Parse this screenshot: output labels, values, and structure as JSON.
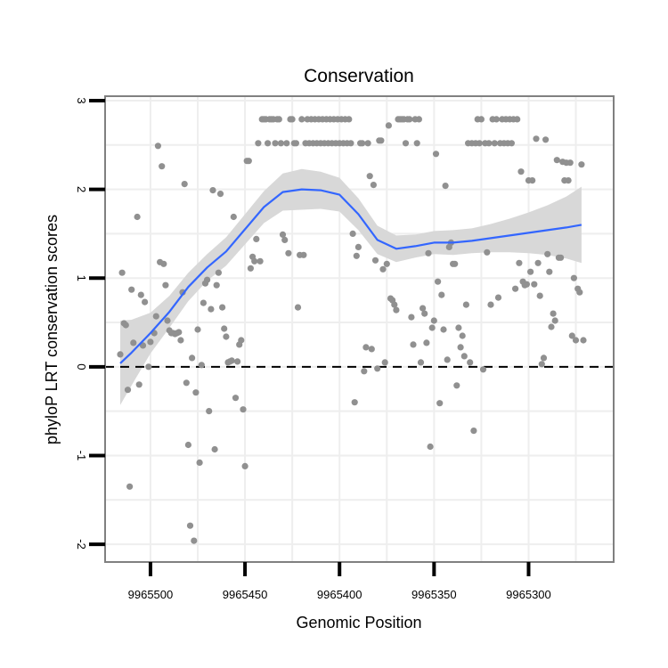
{
  "chart_data": {
    "type": "scatter",
    "title": "Conservation",
    "xlabel": "Genomic Position",
    "ylabel": "phyloP LRT conservation scores",
    "x_reversed": true,
    "xlim": [
      9965524,
      9965255
    ],
    "ylim": [
      -2.2,
      3.05
    ],
    "x_ticks": [
      9965500,
      9965450,
      9965400,
      9965350,
      9965300
    ],
    "x_tick_labels": [
      "9965500",
      "9965450",
      "9965400",
      "9965350",
      "9965300"
    ],
    "y_ticks": [
      -2,
      -1,
      0,
      1,
      2,
      3
    ],
    "y_tick_labels": [
      "-2",
      "-1",
      "0",
      "1",
      "2",
      "3"
    ],
    "grid": true,
    "reference_line": {
      "y": 0,
      "style": "dashed"
    },
    "colors": {
      "points": "#909090",
      "smooth_line": "#3366ff",
      "confidence_band": "#d6d6d6",
      "grid": "#eeeeee",
      "panel_border": "#808080"
    },
    "points": [
      [
        9965516,
        0.14
      ],
      [
        9965515,
        1.06
      ],
      [
        9965514,
        0.49
      ],
      [
        9965513,
        0.47
      ],
      [
        9965512,
        -0.26
      ],
      [
        9965511,
        -1.35
      ],
      [
        9965510,
        0.87
      ],
      [
        9965509,
        0.27
      ],
      [
        9965507,
        1.69
      ],
      [
        9965506,
        -0.2
      ],
      [
        9965505,
        0.81
      ],
      [
        9965504,
        0.24
      ],
      [
        9965503,
        0.73
      ],
      [
        9965501,
        0.0
      ],
      [
        9965500,
        0.28
      ],
      [
        9965498,
        0.38
      ],
      [
        9965497,
        0.57
      ],
      [
        9965496,
        2.49
      ],
      [
        9965495,
        1.18
      ],
      [
        9965494,
        2.26
      ],
      [
        9965493,
        1.16
      ],
      [
        9965492,
        0.92
      ],
      [
        9965491,
        0.52
      ],
      [
        9965490,
        0.41
      ],
      [
        9965489,
        0.38
      ],
      [
        9965488,
        0.38
      ],
      [
        9965487,
        0.37
      ],
      [
        9965486,
        0.38
      ],
      [
        9965485,
        0.39
      ],
      [
        9965484,
        0.3
      ],
      [
        9965483,
        0.84
      ],
      [
        9965482,
        2.06
      ],
      [
        9965481,
        -0.18
      ],
      [
        9965480,
        -0.88
      ],
      [
        9965479,
        -1.79
      ],
      [
        9965478,
        0.1
      ],
      [
        9965477,
        -1.96
      ],
      [
        9965476,
        -0.29
      ],
      [
        9965475,
        0.42
      ],
      [
        9965474,
        -1.08
      ],
      [
        9965473,
        0.02
      ],
      [
        9965472,
        0.72
      ],
      [
        9965471,
        0.94
      ],
      [
        9965470,
        0.98
      ],
      [
        9965469,
        -0.5
      ],
      [
        9965468,
        0.65
      ],
      [
        9965467,
        1.99
      ],
      [
        9965466,
        -0.93
      ],
      [
        9965465,
        0.92
      ],
      [
        9965464,
        1.06
      ],
      [
        9965463,
        1.95
      ],
      [
        9965462,
        0.67
      ],
      [
        9965461,
        0.43
      ],
      [
        9965460,
        0.34
      ],
      [
        9965459,
        0.05
      ],
      [
        9965458,
        0.06
      ],
      [
        9965457,
        0.07
      ],
      [
        9965456,
        1.69
      ],
      [
        9965455,
        -0.35
      ],
      [
        9965454,
        0.06
      ],
      [
        9965453,
        0.25
      ],
      [
        9965452,
        0.3
      ],
      [
        9965451,
        -0.48
      ],
      [
        9965450,
        -1.12
      ],
      [
        9965449,
        2.32
      ],
      [
        9965448,
        2.32
      ],
      [
        9965447,
        1.11
      ],
      [
        9965446,
        1.24
      ],
      [
        9965445,
        1.19
      ],
      [
        9965444,
        1.44
      ],
      [
        9965443,
        2.52
      ],
      [
        9965442,
        1.19
      ],
      [
        9965441,
        2.79
      ],
      [
        9965440,
        2.79
      ],
      [
        9965439,
        2.79
      ],
      [
        9965438,
        2.52
      ],
      [
        9965437,
        2.79
      ],
      [
        9965436,
        2.79
      ],
      [
        9965435,
        2.79
      ],
      [
        9965434,
        2.52
      ],
      [
        9965433,
        2.79
      ],
      [
        9965432,
        2.79
      ],
      [
        9965431,
        2.52
      ],
      [
        9965430,
        1.49
      ],
      [
        9965429,
        1.43
      ],
      [
        9965428,
        2.52
      ],
      [
        9965427,
        1.28
      ],
      [
        9965426,
        2.79
      ],
      [
        9965425,
        2.79
      ],
      [
        9965424,
        2.52
      ],
      [
        9965423,
        2.52
      ],
      [
        9965422,
        0.67
      ],
      [
        9965421,
        1.26
      ],
      [
        9965420,
        2.79
      ],
      [
        9965419,
        1.26
      ],
      [
        9965418,
        2.52
      ],
      [
        9965417,
        2.79
      ],
      [
        9965416,
        2.52
      ],
      [
        9965415,
        2.79
      ],
      [
        9965414,
        2.52
      ],
      [
        9965413,
        2.79
      ],
      [
        9965412,
        2.52
      ],
      [
        9965411,
        2.79
      ],
      [
        9965410,
        2.52
      ],
      [
        9965409,
        2.79
      ],
      [
        9965408,
        2.52
      ],
      [
        9965407,
        2.79
      ],
      [
        9965406,
        2.52
      ],
      [
        9965405,
        2.79
      ],
      [
        9965404,
        2.52
      ],
      [
        9965403,
        2.79
      ],
      [
        9965402,
        2.52
      ],
      [
        9965401,
        2.79
      ],
      [
        9965400,
        2.52
      ],
      [
        9965399,
        2.79
      ],
      [
        9965398,
        2.52
      ],
      [
        9965397,
        2.79
      ],
      [
        9965396,
        2.52
      ],
      [
        9965395,
        2.79
      ],
      [
        9965394,
        2.52
      ],
      [
        9965393,
        1.5
      ],
      [
        9965392,
        -0.4
      ],
      [
        9965391,
        1.25
      ],
      [
        9965390,
        1.35
      ],
      [
        9965389,
        2.52
      ],
      [
        9965388,
        2.52
      ],
      [
        9965387,
        -0.05
      ],
      [
        9965386,
        0.22
      ],
      [
        9965385,
        2.52
      ],
      [
        9965384,
        2.15
      ],
      [
        9965383,
        0.2
      ],
      [
        9965382,
        2.05
      ],
      [
        9965381,
        1.2
      ],
      [
        9965380,
        -0.02
      ],
      [
        9965379,
        2.55
      ],
      [
        9965378,
        2.55
      ],
      [
        9965377,
        1.1
      ],
      [
        9965376,
        0.05
      ],
      [
        9965375,
        1.16
      ],
      [
        9965374,
        2.72
      ],
      [
        9965373,
        0.77
      ],
      [
        9965372,
        0.75
      ],
      [
        9965371,
        0.7
      ],
      [
        9965370,
        0.64
      ],
      [
        9965369,
        2.79
      ],
      [
        9965368,
        2.79
      ],
      [
        9965367,
        2.79
      ],
      [
        9965366,
        2.79
      ],
      [
        9965365,
        2.52
      ],
      [
        9965364,
        2.79
      ],
      [
        9965363,
        2.79
      ],
      [
        9965362,
        0.56
      ],
      [
        9965361,
        0.25
      ],
      [
        9965360,
        2.79
      ],
      [
        9965359,
        2.52
      ],
      [
        9965358,
        2.79
      ],
      [
        9965357,
        0.05
      ],
      [
        9965356,
        0.66
      ],
      [
        9965355,
        0.6
      ],
      [
        9965354,
        0.27
      ],
      [
        9965353,
        1.28
      ],
      [
        9965352,
        -0.9
      ],
      [
        9965351,
        0.44
      ],
      [
        9965350,
        0.52
      ],
      [
        9965349,
        2.4
      ],
      [
        9965348,
        0.96
      ],
      [
        9965347,
        -0.41
      ],
      [
        9965346,
        0.81
      ],
      [
        9965345,
        0.42
      ],
      [
        9965344,
        2.04
      ],
      [
        9965343,
        0.08
      ],
      [
        9965342,
        1.35
      ],
      [
        9965341,
        1.4
      ],
      [
        9965340,
        1.16
      ],
      [
        9965339,
        1.16
      ],
      [
        9965338,
        -0.21
      ],
      [
        9965337,
        0.44
      ],
      [
        9965336,
        0.22
      ],
      [
        9965335,
        0.35
      ],
      [
        9965334,
        0.12
      ],
      [
        9965333,
        0.7
      ],
      [
        9965332,
        2.52
      ],
      [
        9965331,
        0.05
      ],
      [
        9965330,
        2.52
      ],
      [
        9965329,
        -0.72
      ],
      [
        9965328,
        2.52
      ],
      [
        9965327,
        2.79
      ],
      [
        9965326,
        2.52
      ],
      [
        9965325,
        2.79
      ],
      [
        9965324,
        -0.03
      ],
      [
        9965323,
        2.52
      ],
      [
        9965322,
        1.29
      ],
      [
        9965321,
        2.52
      ],
      [
        9965320,
        0.7
      ],
      [
        9965319,
        2.79
      ],
      [
        9965318,
        2.52
      ],
      [
        9965317,
        2.79
      ],
      [
        9965316,
        0.78
      ],
      [
        9965315,
        2.52
      ],
      [
        9965314,
        2.79
      ],
      [
        9965313,
        2.52
      ],
      [
        9965312,
        2.79
      ],
      [
        9965311,
        2.52
      ],
      [
        9965310,
        2.79
      ],
      [
        9965309,
        2.52
      ],
      [
        9965308,
        2.79
      ],
      [
        9965307,
        0.88
      ],
      [
        9965306,
        2.79
      ],
      [
        9965305,
        1.17
      ],
      [
        9965304,
        2.2
      ],
      [
        9965303,
        0.96
      ],
      [
        9965302,
        0.92
      ],
      [
        9965301,
        0.93
      ],
      [
        9965300,
        2.1
      ],
      [
        9965299,
        1.07
      ],
      [
        9965298,
        2.1
      ],
      [
        9965297,
        0.93
      ],
      [
        9965296,
        2.57
      ],
      [
        9965295,
        1.17
      ],
      [
        9965294,
        0.8
      ],
      [
        9965293,
        0.03
      ],
      [
        9965292,
        0.1
      ],
      [
        9965291,
        2.56
      ],
      [
        9965290,
        1.27
      ],
      [
        9965289,
        1.07
      ],
      [
        9965288,
        0.45
      ],
      [
        9965287,
        0.6
      ],
      [
        9965286,
        0.52
      ],
      [
        9965285,
        2.33
      ],
      [
        9965284,
        1.23
      ],
      [
        9965283,
        1.23
      ],
      [
        9965282,
        2.31
      ],
      [
        9965281,
        2.1
      ],
      [
        9965280,
        2.3
      ],
      [
        9965279,
        2.1
      ],
      [
        9965278,
        2.3
      ],
      [
        9965277,
        0.35
      ],
      [
        9965276,
        1.0
      ],
      [
        9965275,
        0.3
      ],
      [
        9965274,
        0.88
      ],
      [
        9965273,
        0.84
      ],
      [
        9965272,
        2.28
      ],
      [
        9965271,
        0.3
      ]
    ],
    "smooth_line": [
      [
        9965516,
        0.04
      ],
      [
        9965510,
        0.16
      ],
      [
        9965500,
        0.38
      ],
      [
        9965490,
        0.62
      ],
      [
        9965480,
        0.9
      ],
      [
        9965470,
        1.12
      ],
      [
        9965460,
        1.3
      ],
      [
        9965450,
        1.55
      ],
      [
        9965440,
        1.8
      ],
      [
        9965430,
        1.97
      ],
      [
        9965420,
        2.0
      ],
      [
        9965410,
        1.99
      ],
      [
        9965400,
        1.94
      ],
      [
        9965390,
        1.72
      ],
      [
        9965380,
        1.43
      ],
      [
        9965370,
        1.33
      ],
      [
        9965360,
        1.36
      ],
      [
        9965350,
        1.4
      ],
      [
        9965340,
        1.4
      ],
      [
        9965330,
        1.42
      ],
      [
        9965320,
        1.45
      ],
      [
        9965310,
        1.48
      ],
      [
        9965300,
        1.51
      ],
      [
        9965290,
        1.54
      ],
      [
        9965280,
        1.57
      ],
      [
        9965272,
        1.6
      ]
    ],
    "confidence_band": {
      "upper": [
        [
          9965516,
          0.52
        ],
        [
          9965510,
          0.53
        ],
        [
          9965500,
          0.61
        ],
        [
          9965490,
          0.8
        ],
        [
          9965480,
          1.06
        ],
        [
          9965470,
          1.27
        ],
        [
          9965460,
          1.46
        ],
        [
          9965450,
          1.72
        ],
        [
          9965440,
          1.98
        ],
        [
          9965430,
          2.18
        ],
        [
          9965420,
          2.23
        ],
        [
          9965410,
          2.2
        ],
        [
          9965400,
          2.13
        ],
        [
          9965390,
          1.9
        ],
        [
          9965380,
          1.59
        ],
        [
          9965370,
          1.48
        ],
        [
          9965360,
          1.49
        ],
        [
          9965350,
          1.53
        ],
        [
          9965340,
          1.54
        ],
        [
          9965330,
          1.56
        ],
        [
          9965320,
          1.61
        ],
        [
          9965310,
          1.67
        ],
        [
          9965300,
          1.74
        ],
        [
          9965290,
          1.82
        ],
        [
          9965280,
          1.92
        ],
        [
          9965272,
          2.03
        ]
      ],
      "lower": [
        [
          9965516,
          -0.43
        ],
        [
          9965510,
          -0.21
        ],
        [
          9965500,
          0.15
        ],
        [
          9965490,
          0.44
        ],
        [
          9965480,
          0.74
        ],
        [
          9965470,
          0.97
        ],
        [
          9965460,
          1.14
        ],
        [
          9965450,
          1.38
        ],
        [
          9965440,
          1.62
        ],
        [
          9965430,
          1.76
        ],
        [
          9965420,
          1.77
        ],
        [
          9965410,
          1.78
        ],
        [
          9965400,
          1.75
        ],
        [
          9965390,
          1.54
        ],
        [
          9965380,
          1.27
        ],
        [
          9965370,
          1.18
        ],
        [
          9965360,
          1.23
        ],
        [
          9965350,
          1.27
        ],
        [
          9965340,
          1.26
        ],
        [
          9965330,
          1.28
        ],
        [
          9965320,
          1.29
        ],
        [
          9965310,
          1.29
        ],
        [
          9965300,
          1.28
        ],
        [
          9965290,
          1.26
        ],
        [
          9965280,
          1.22
        ],
        [
          9965272,
          1.17
        ]
      ]
    }
  }
}
